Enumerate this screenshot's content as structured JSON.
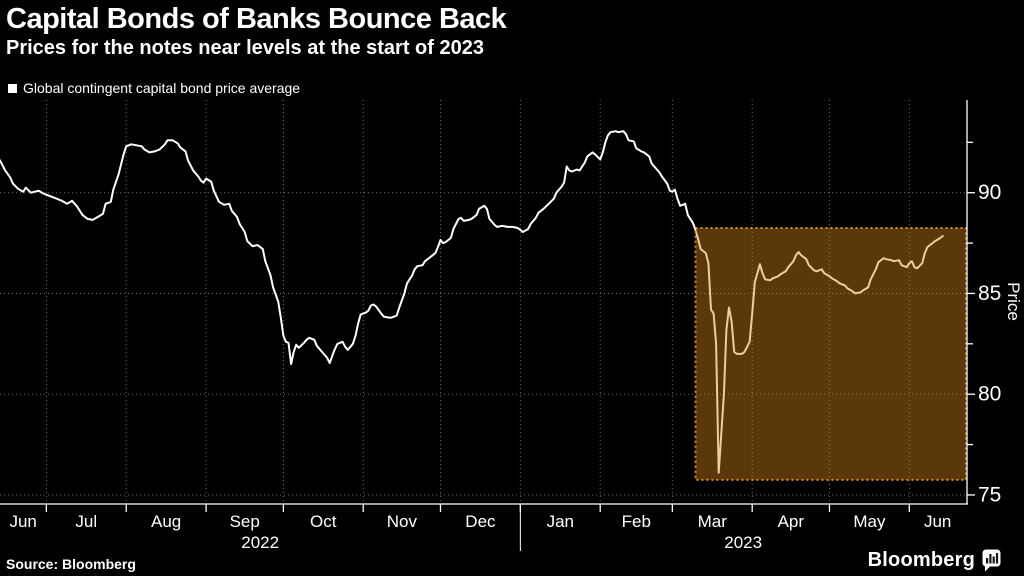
{
  "header": {
    "title": "Capital Bonds of Banks Bounce Back",
    "subtitle": "Prices for the notes near levels at the start of 2023"
  },
  "legend": {
    "marker_color": "#ffffff",
    "label": "Global contingent capital bond price average"
  },
  "footer": {
    "source": "Source: Bloomberg",
    "brand": "Bloomberg",
    "brand_icon": "bloomberg-bubble-bars-icon"
  },
  "colors": {
    "background": "#000000",
    "text": "#ffffff",
    "line": "#ffffff",
    "grid": "#6b6b6b",
    "axis": "#ffffff",
    "highlight_fill": "rgba(217,134,24,0.42)",
    "highlight_border": "#d9921e"
  },
  "chart_data": {
    "type": "line",
    "title": "Capital Bonds of Banks Bounce Back",
    "subtitle": "Prices for the notes near levels at the start of 2023",
    "legend_position": "top-left",
    "grid": true,
    "x_axis": {
      "start": "2022-06-13",
      "end": "2023-06-23",
      "month_tick_dates": [
        "2022-07-01",
        "2022-08-01",
        "2022-09-01",
        "2022-10-01",
        "2022-11-01",
        "2022-12-01",
        "2023-01-01",
        "2023-02-01",
        "2023-03-01",
        "2023-04-01",
        "2023-05-01",
        "2023-06-01"
      ],
      "month_labels": [
        "Jun",
        "Jul",
        "Aug",
        "Sep",
        "Oct",
        "Nov",
        "Dec",
        "Jan",
        "Feb",
        "Mar",
        "Apr",
        "May",
        "Jun"
      ],
      "year_labels": [
        {
          "label": "2022",
          "from": "2022-06-13",
          "to": "2023-01-01"
        },
        {
          "label": "2023",
          "from": "2023-01-01",
          "to": "2023-06-23"
        }
      ],
      "year_divider_date": "2023-01-01"
    },
    "y_axis": {
      "label": "Price",
      "min": 74.6,
      "max": 94.6,
      "major_ticks": [
        90,
        85,
        80,
        75
      ],
      "minor_ticks": [
        92.5,
        87.5,
        82.5,
        77.5
      ],
      "side": "right"
    },
    "highlight_region": {
      "from": "2023-03-10",
      "to": "2023-06-23",
      "price_min": 75.75,
      "price_max": 88.25,
      "style": "dotted-border-translucent-fill"
    },
    "series": [
      {
        "name": "Global contingent capital bond price average",
        "color": "#ffffff",
        "points": [
          [
            "2022-06-13",
            91.6
          ],
          [
            "2022-06-15",
            91.1
          ],
          [
            "2022-06-17",
            90.75
          ],
          [
            "2022-06-18",
            90.45
          ],
          [
            "2022-06-20",
            90.2
          ],
          [
            "2022-06-22",
            90.05
          ],
          [
            "2022-06-23",
            90.25
          ],
          [
            "2022-06-25",
            90.0
          ],
          [
            "2022-06-28",
            90.1
          ],
          [
            "2022-06-30",
            89.95
          ],
          [
            "2022-07-02",
            89.85
          ],
          [
            "2022-07-05",
            89.7
          ],
          [
            "2022-07-07",
            89.6
          ],
          [
            "2022-07-09",
            89.45
          ],
          [
            "2022-07-11",
            89.6
          ],
          [
            "2022-07-13",
            89.3
          ],
          [
            "2022-07-15",
            88.9
          ],
          [
            "2022-07-17",
            88.7
          ],
          [
            "2022-07-19",
            88.65
          ],
          [
            "2022-07-21",
            88.8
          ],
          [
            "2022-07-23",
            88.95
          ],
          [
            "2022-07-24",
            89.45
          ],
          [
            "2022-07-26",
            89.55
          ],
          [
            "2022-07-27",
            90.15
          ],
          [
            "2022-07-29",
            90.9
          ],
          [
            "2022-07-31",
            91.9
          ],
          [
            "2022-08-01",
            92.3
          ],
          [
            "2022-08-03",
            92.4
          ],
          [
            "2022-08-05",
            92.35
          ],
          [
            "2022-08-07",
            92.3
          ],
          [
            "2022-08-08",
            92.15
          ],
          [
            "2022-08-10",
            92.0
          ],
          [
            "2022-08-12",
            92.05
          ],
          [
            "2022-08-14",
            92.15
          ],
          [
            "2022-08-16",
            92.4
          ],
          [
            "2022-08-17",
            92.6
          ],
          [
            "2022-08-19",
            92.6
          ],
          [
            "2022-08-21",
            92.45
          ],
          [
            "2022-08-22",
            92.25
          ],
          [
            "2022-08-24",
            92.05
          ],
          [
            "2022-08-25",
            91.6
          ],
          [
            "2022-08-27",
            91.1
          ],
          [
            "2022-08-29",
            90.8
          ],
          [
            "2022-08-30",
            90.6
          ],
          [
            "2022-08-31",
            90.5
          ],
          [
            "2022-09-01",
            90.7
          ],
          [
            "2022-09-03",
            90.55
          ],
          [
            "2022-09-04",
            90.1
          ],
          [
            "2022-09-06",
            89.55
          ],
          [
            "2022-09-08",
            89.4
          ],
          [
            "2022-09-10",
            89.45
          ],
          [
            "2022-09-11",
            89.1
          ],
          [
            "2022-09-13",
            88.8
          ],
          [
            "2022-09-14",
            88.45
          ],
          [
            "2022-09-16",
            88.05
          ],
          [
            "2022-09-17",
            87.6
          ],
          [
            "2022-09-19",
            87.35
          ],
          [
            "2022-09-21",
            87.4
          ],
          [
            "2022-09-23",
            87.2
          ],
          [
            "2022-09-24",
            86.6
          ],
          [
            "2022-09-26",
            85.9
          ],
          [
            "2022-09-27",
            85.3
          ],
          [
            "2022-09-29",
            84.6
          ],
          [
            "2022-09-30",
            83.8
          ],
          [
            "2022-10-01",
            82.9
          ],
          [
            "2022-10-02",
            82.6
          ],
          [
            "2022-10-03",
            82.55
          ],
          [
            "2022-10-04",
            81.5
          ],
          [
            "2022-10-05",
            82.1
          ],
          [
            "2022-10-06",
            82.45
          ],
          [
            "2022-10-07",
            82.3
          ],
          [
            "2022-10-09",
            82.55
          ],
          [
            "2022-10-10",
            82.7
          ],
          [
            "2022-10-11",
            82.8
          ],
          [
            "2022-10-13",
            82.7
          ],
          [
            "2022-10-14",
            82.4
          ],
          [
            "2022-10-16",
            82.1
          ],
          [
            "2022-10-18",
            81.8
          ],
          [
            "2022-10-19",
            81.55
          ],
          [
            "2022-10-20",
            81.9
          ],
          [
            "2022-10-21",
            82.25
          ],
          [
            "2022-10-22",
            82.5
          ],
          [
            "2022-10-24",
            82.6
          ],
          [
            "2022-10-25",
            82.35
          ],
          [
            "2022-10-26",
            82.2
          ],
          [
            "2022-10-28",
            82.5
          ],
          [
            "2022-10-29",
            82.9
          ],
          [
            "2022-10-30",
            83.5
          ],
          [
            "2022-10-31",
            83.95
          ],
          [
            "2022-11-02",
            84.05
          ],
          [
            "2022-11-03",
            84.15
          ],
          [
            "2022-11-04",
            84.4
          ],
          [
            "2022-11-05",
            84.45
          ],
          [
            "2022-11-06",
            84.35
          ],
          [
            "2022-11-08",
            84.0
          ],
          [
            "2022-11-09",
            83.85
          ],
          [
            "2022-11-11",
            83.8
          ],
          [
            "2022-11-12",
            83.8
          ],
          [
            "2022-11-14",
            83.9
          ],
          [
            "2022-11-15",
            84.3
          ],
          [
            "2022-11-17",
            85.0
          ],
          [
            "2022-11-18",
            85.5
          ],
          [
            "2022-11-20",
            85.9
          ],
          [
            "2022-11-21",
            86.2
          ],
          [
            "2022-11-22",
            86.35
          ],
          [
            "2022-11-24",
            86.4
          ],
          [
            "2022-11-25",
            86.6
          ],
          [
            "2022-11-27",
            86.8
          ],
          [
            "2022-11-29",
            87.0
          ],
          [
            "2022-11-30",
            87.3
          ],
          [
            "2022-12-01",
            87.65
          ],
          [
            "2022-12-02",
            87.5
          ],
          [
            "2022-12-03",
            87.55
          ],
          [
            "2022-12-05",
            87.75
          ],
          [
            "2022-12-06",
            88.2
          ],
          [
            "2022-12-08",
            88.7
          ],
          [
            "2022-12-09",
            88.75
          ],
          [
            "2022-12-10",
            88.6
          ],
          [
            "2022-12-12",
            88.65
          ],
          [
            "2022-12-13",
            88.7
          ],
          [
            "2022-12-15",
            88.9
          ],
          [
            "2022-12-16",
            89.2
          ],
          [
            "2022-12-18",
            89.35
          ],
          [
            "2022-12-19",
            89.2
          ],
          [
            "2022-12-20",
            88.7
          ],
          [
            "2022-12-22",
            88.4
          ],
          [
            "2022-12-23",
            88.3
          ],
          [
            "2022-12-25",
            88.35
          ],
          [
            "2022-12-27",
            88.3
          ],
          [
            "2022-12-29",
            88.3
          ],
          [
            "2022-12-31",
            88.25
          ],
          [
            "2023-01-01",
            88.15
          ],
          [
            "2023-01-02",
            88.05
          ],
          [
            "2023-01-04",
            88.2
          ],
          [
            "2023-01-05",
            88.45
          ],
          [
            "2023-01-07",
            88.75
          ],
          [
            "2023-01-08",
            89.0
          ],
          [
            "2023-01-10",
            89.2
          ],
          [
            "2023-01-12",
            89.45
          ],
          [
            "2023-01-14",
            89.7
          ],
          [
            "2023-01-15",
            90.0
          ],
          [
            "2023-01-17",
            90.3
          ],
          [
            "2023-01-18",
            90.5
          ],
          [
            "2023-01-19",
            91.3
          ],
          [
            "2023-01-20",
            91.1
          ],
          [
            "2023-01-21",
            91.05
          ],
          [
            "2023-01-23",
            91.15
          ],
          [
            "2023-01-24",
            91.1
          ],
          [
            "2023-01-26",
            91.5
          ],
          [
            "2023-01-27",
            91.8
          ],
          [
            "2023-01-29",
            92.0
          ],
          [
            "2023-01-30",
            91.9
          ],
          [
            "2023-02-01",
            91.65
          ],
          [
            "2023-02-02",
            92.0
          ],
          [
            "2023-02-03",
            92.5
          ],
          [
            "2023-02-04",
            92.85
          ],
          [
            "2023-02-05",
            93.0
          ],
          [
            "2023-02-07",
            93.05
          ],
          [
            "2023-02-08",
            93.0
          ],
          [
            "2023-02-10",
            93.05
          ],
          [
            "2023-02-11",
            92.9
          ],
          [
            "2023-02-12",
            92.6
          ],
          [
            "2023-02-14",
            92.55
          ],
          [
            "2023-02-15",
            92.2
          ],
          [
            "2023-02-17",
            92.05
          ],
          [
            "2023-02-18",
            92.0
          ],
          [
            "2023-02-20",
            91.8
          ],
          [
            "2023-02-21",
            91.45
          ],
          [
            "2023-02-23",
            91.15
          ],
          [
            "2023-02-24",
            91.0
          ],
          [
            "2023-02-25",
            90.8
          ],
          [
            "2023-02-27",
            90.45
          ],
          [
            "2023-02-28",
            90.1
          ],
          [
            "2023-03-01",
            90.05
          ],
          [
            "2023-03-02",
            90.15
          ],
          [
            "2023-03-03",
            89.7
          ],
          [
            "2023-03-04",
            89.35
          ],
          [
            "2023-03-06",
            89.45
          ],
          [
            "2023-03-07",
            88.9
          ],
          [
            "2023-03-09",
            88.5
          ],
          [
            "2023-03-10",
            88.15
          ],
          [
            "2023-03-11",
            87.7
          ],
          [
            "2023-03-12",
            87.2
          ],
          [
            "2023-03-14",
            87.0
          ],
          [
            "2023-03-15",
            86.5
          ],
          [
            "2023-03-16",
            84.2
          ],
          [
            "2023-03-17",
            84.0
          ],
          [
            "2023-03-18",
            82.5
          ],
          [
            "2023-03-19",
            76.1
          ],
          [
            "2023-03-21",
            80.0
          ],
          [
            "2023-03-22",
            83.2
          ],
          [
            "2023-03-23",
            84.3
          ],
          [
            "2023-03-24",
            83.6
          ],
          [
            "2023-03-25",
            82.1
          ],
          [
            "2023-03-26",
            82.0
          ],
          [
            "2023-03-28",
            82.0
          ],
          [
            "2023-03-29",
            82.1
          ],
          [
            "2023-03-31",
            82.6
          ],
          [
            "2023-04-01",
            84.0
          ],
          [
            "2023-04-02",
            85.55
          ],
          [
            "2023-04-04",
            86.45
          ],
          [
            "2023-04-05",
            86.0
          ],
          [
            "2023-04-06",
            85.7
          ],
          [
            "2023-04-08",
            85.65
          ],
          [
            "2023-04-09",
            85.75
          ],
          [
            "2023-04-11",
            85.85
          ],
          [
            "2023-04-12",
            85.95
          ],
          [
            "2023-04-14",
            86.1
          ],
          [
            "2023-04-15",
            86.3
          ],
          [
            "2023-04-17",
            86.6
          ],
          [
            "2023-04-18",
            86.9
          ],
          [
            "2023-04-19",
            87.05
          ],
          [
            "2023-04-20",
            86.9
          ],
          [
            "2023-04-22",
            86.7
          ],
          [
            "2023-04-23",
            86.4
          ],
          [
            "2023-04-25",
            86.15
          ],
          [
            "2023-04-26",
            86.1
          ],
          [
            "2023-04-28",
            86.2
          ],
          [
            "2023-04-29",
            86.0
          ],
          [
            "2023-05-01",
            85.85
          ],
          [
            "2023-05-02",
            85.75
          ],
          [
            "2023-05-04",
            85.6
          ],
          [
            "2023-05-05",
            85.5
          ],
          [
            "2023-05-07",
            85.4
          ],
          [
            "2023-05-08",
            85.25
          ],
          [
            "2023-05-10",
            85.1
          ],
          [
            "2023-05-11",
            85.0
          ],
          [
            "2023-05-13",
            85.05
          ],
          [
            "2023-05-14",
            85.15
          ],
          [
            "2023-05-16",
            85.3
          ],
          [
            "2023-05-17",
            85.7
          ],
          [
            "2023-05-19",
            86.2
          ],
          [
            "2023-05-20",
            86.55
          ],
          [
            "2023-05-22",
            86.75
          ],
          [
            "2023-05-23",
            86.7
          ],
          [
            "2023-05-25",
            86.65
          ],
          [
            "2023-05-26",
            86.6
          ],
          [
            "2023-05-28",
            86.65
          ],
          [
            "2023-05-29",
            86.4
          ],
          [
            "2023-05-31",
            86.3
          ],
          [
            "2023-06-01",
            86.5
          ],
          [
            "2023-06-02",
            86.6
          ],
          [
            "2023-06-03",
            86.3
          ],
          [
            "2023-06-04",
            86.25
          ],
          [
            "2023-06-06",
            86.5
          ],
          [
            "2023-06-07",
            87.0
          ],
          [
            "2023-06-08",
            87.3
          ],
          [
            "2023-06-10",
            87.5
          ],
          [
            "2023-06-11",
            87.6
          ],
          [
            "2023-06-13",
            87.75
          ],
          [
            "2023-06-14",
            87.85
          ]
        ]
      }
    ]
  }
}
